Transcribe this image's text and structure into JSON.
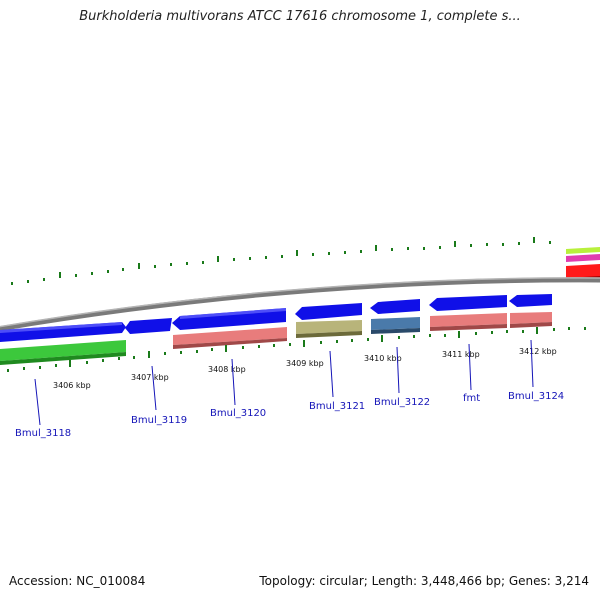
{
  "title": "Burkholderia multivorans ATCC 17616 chromosome 1, complete s...",
  "footer": {
    "accession": "Accession: NC_010084",
    "summary": "Topology: circular; Length: 3,448,466 bp; Genes: 3,214"
  },
  "ticks": [
    "3406 kbp",
    "3407 kbp",
    "3408 kbp",
    "3409 kbp",
    "3410 kbp",
    "3411 kbp",
    "3412 kbp"
  ],
  "genes": [
    "Bmul_3118",
    "Bmul_3119",
    "Bmul_3120",
    "Bmul_3121",
    "Bmul_3122",
    "fmt",
    "Bmul_3124"
  ],
  "colors": {
    "backbone": "#888888",
    "cds": "#1010e8",
    "tick": "#1a7a1a",
    "green_feature": "#3cc83c",
    "pink_feature": "#e87c7c",
    "olive_feature": "#b8b47a",
    "steel_feature": "#4a7aaa",
    "red_feature": "#ff1a1a",
    "lime_feature": "#b8f03c",
    "magenta_feature": "#e03cb0",
    "gene_label": "#1515b8"
  }
}
